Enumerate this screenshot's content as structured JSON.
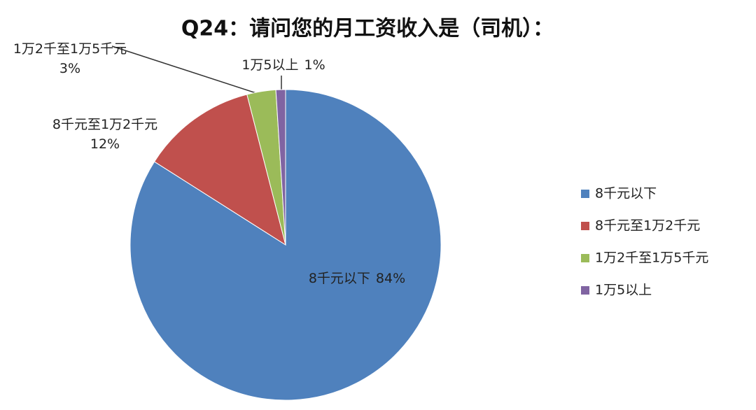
{
  "chart_data": {
    "type": "pie",
    "title": "Q24：请问您的月工资收入是（司机）：",
    "categories": [
      "8千元以下",
      "8千元至1万2千元",
      "1万2千至1万5千元",
      "1万5以上"
    ],
    "values": [
      84,
      12,
      3,
      1
    ],
    "value_labels": [
      "84%",
      "12%",
      "3%",
      "1%"
    ],
    "colors": [
      "#4f81bd",
      "#c0504d",
      "#9bbb59",
      "#8064a2"
    ],
    "legend": "right"
  }
}
